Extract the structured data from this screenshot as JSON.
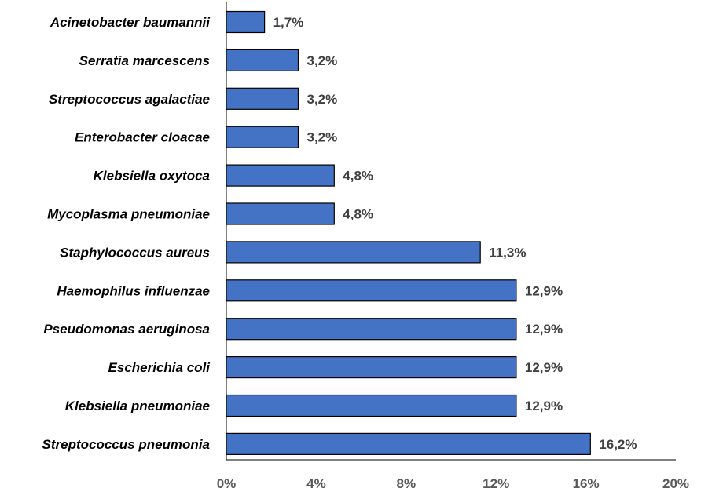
{
  "chart_data": {
    "type": "bar",
    "orientation": "horizontal",
    "categories": [
      "Acinetobacter baumannii",
      "Serratia marcescens",
      "Streptococcus agalactiae",
      "Enterobacter cloacae",
      "Klebsiella oxytoca",
      "Mycoplasma pneumoniae",
      "Staphylococcus aureus",
      "Haemophilus influenzae",
      "Pseudomonas aeruginosa",
      "Escherichia coli",
      "Klebsiella pneumoniae",
      "Streptococcus pneumonia"
    ],
    "values": [
      1.7,
      3.2,
      3.2,
      3.2,
      4.8,
      4.8,
      11.3,
      12.9,
      12.9,
      12.9,
      12.9,
      16.2
    ],
    "data_labels": [
      "1,7%",
      "3,2%",
      "3,2%",
      "3,2%",
      "4,8%",
      "4,8%",
      "11,3%",
      "12,9%",
      "12,9%",
      "12,9%",
      "12,9%",
      "16,2%"
    ],
    "xlim": [
      0,
      20
    ],
    "xticks": [
      0,
      4,
      8,
      12,
      16,
      20
    ],
    "xtick_labels": [
      "0%",
      "4%",
      "8%",
      "12%",
      "16%",
      "20%"
    ],
    "title": "",
    "xlabel": "",
    "ylabel": "",
    "grid": false,
    "legend": "none",
    "colors": {
      "bar_fill": "#4472C4",
      "bar_stroke": "#000000",
      "axis": "#000000",
      "category_text": "#000000",
      "data_label_text": "#404040",
      "tick_text": "#595959"
    }
  }
}
